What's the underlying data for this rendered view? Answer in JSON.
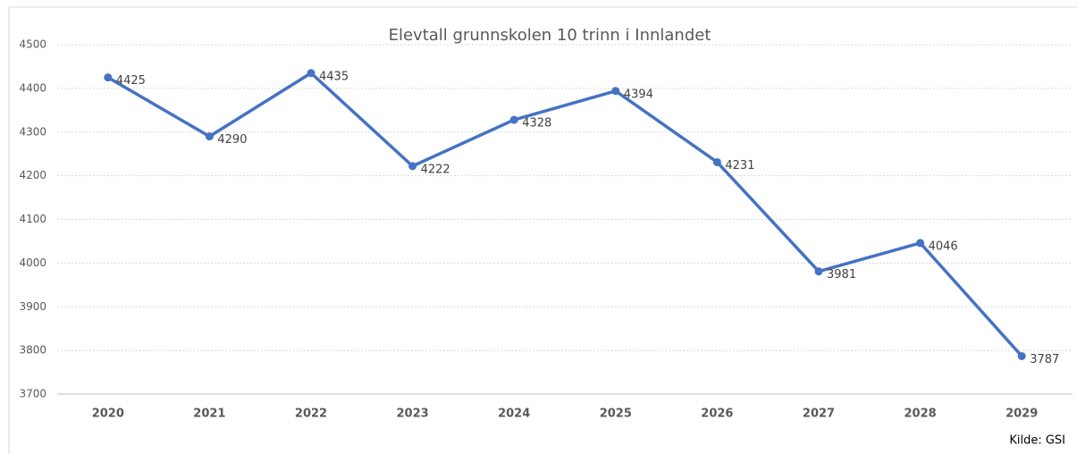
{
  "chart_data": {
    "type": "line",
    "title": "Elevtall grunnskolen 10 trinn i Innlandet",
    "categories": [
      "2020",
      "2021",
      "2022",
      "2023",
      "2024",
      "2025",
      "2026",
      "2027",
      "2028",
      "2029"
    ],
    "series": [
      {
        "name": "Elevtall",
        "color": "#4472c4",
        "values": [
          4425,
          4290,
          4435,
          4222,
          4328,
          4394,
          4231,
          3981,
          4046,
          3787
        ]
      }
    ],
    "ylim": [
      3700,
      4500
    ],
    "yticks": [
      3700,
      3800,
      3900,
      4000,
      4100,
      4200,
      4300,
      4400,
      4500
    ],
    "grid": true,
    "source": "Kilde: GSI"
  }
}
